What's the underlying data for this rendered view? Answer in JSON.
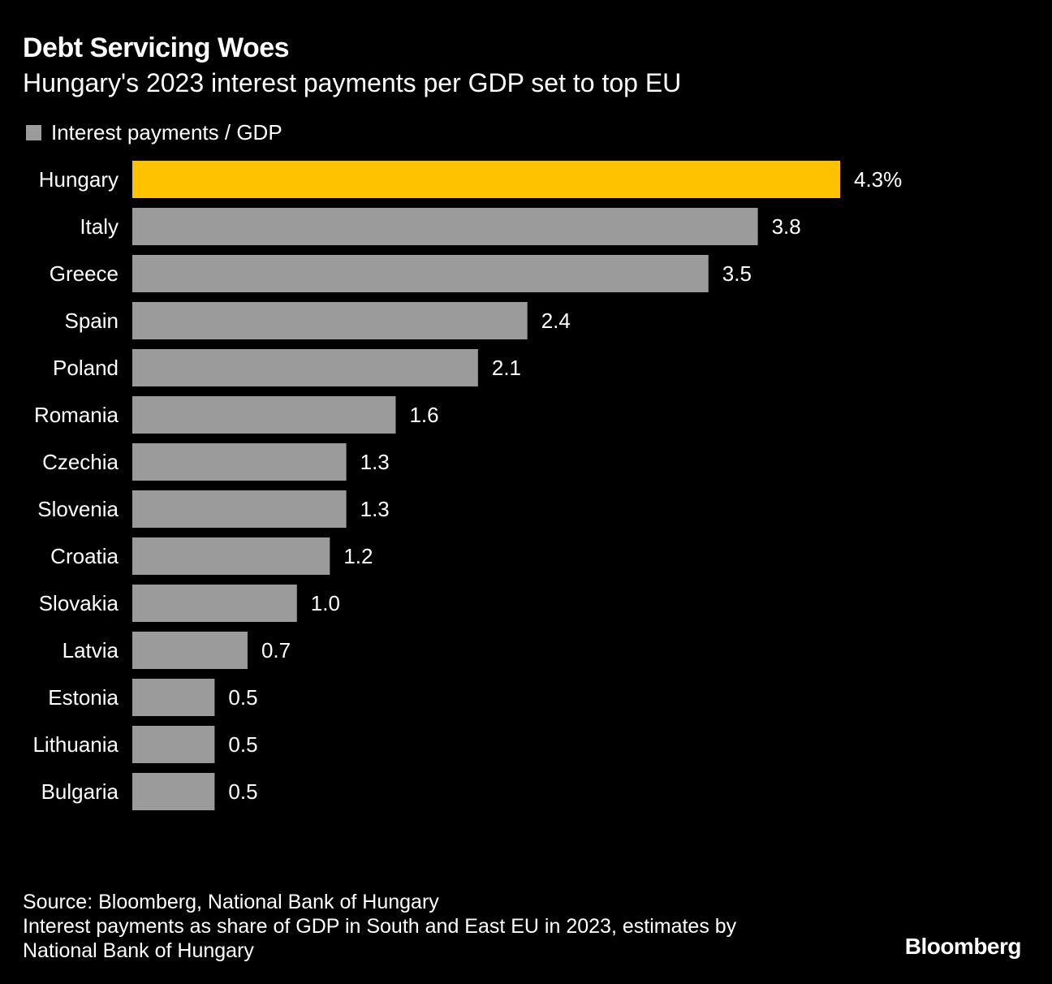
{
  "header": {
    "title": "Debt Servicing Woes",
    "subtitle": "Hungary's 2023 interest payments per GDP set to top EU"
  },
  "colors": {
    "background": "#000000",
    "highlight": "#ffc200",
    "bar": "#9b9b9b",
    "text": "#ffffff"
  },
  "chart_data": {
    "type": "bar",
    "orientation": "horizontal",
    "title": "Debt Servicing Woes",
    "subtitle": "Hungary's 2023 interest payments per GDP set to top EU",
    "legend": {
      "position": "top-left",
      "entries": [
        "Interest payments / GDP"
      ]
    },
    "grid": false,
    "xlim": [
      0,
      4.3
    ],
    "highlight_category": "Hungary",
    "categories": [
      "Hungary",
      "Italy",
      "Greece",
      "Spain",
      "Poland",
      "Romania",
      "Czechia",
      "Slovenia",
      "Croatia",
      "Slovakia",
      "Latvia",
      "Estonia",
      "Lithuania",
      "Bulgaria"
    ],
    "series": [
      {
        "name": "Interest payments / GDP",
        "values": [
          4.3,
          3.8,
          3.5,
          2.4,
          2.1,
          1.6,
          1.3,
          1.3,
          1.2,
          1.0,
          0.7,
          0.5,
          0.5,
          0.5
        ],
        "labels": [
          "4.3%",
          "3.8",
          "3.5",
          "2.4",
          "2.1",
          "1.6",
          "1.3",
          "1.3",
          "1.2",
          "1.0",
          "0.7",
          "0.5",
          "0.5",
          "0.5"
        ]
      }
    ]
  },
  "footer": {
    "source": "Source: Bloomberg, National Bank of Hungary",
    "note_line1": "Interest payments as share of GDP in South and East EU in 2023, estimates by",
    "note_line2": "National Bank of Hungary",
    "logo": "Bloomberg"
  }
}
